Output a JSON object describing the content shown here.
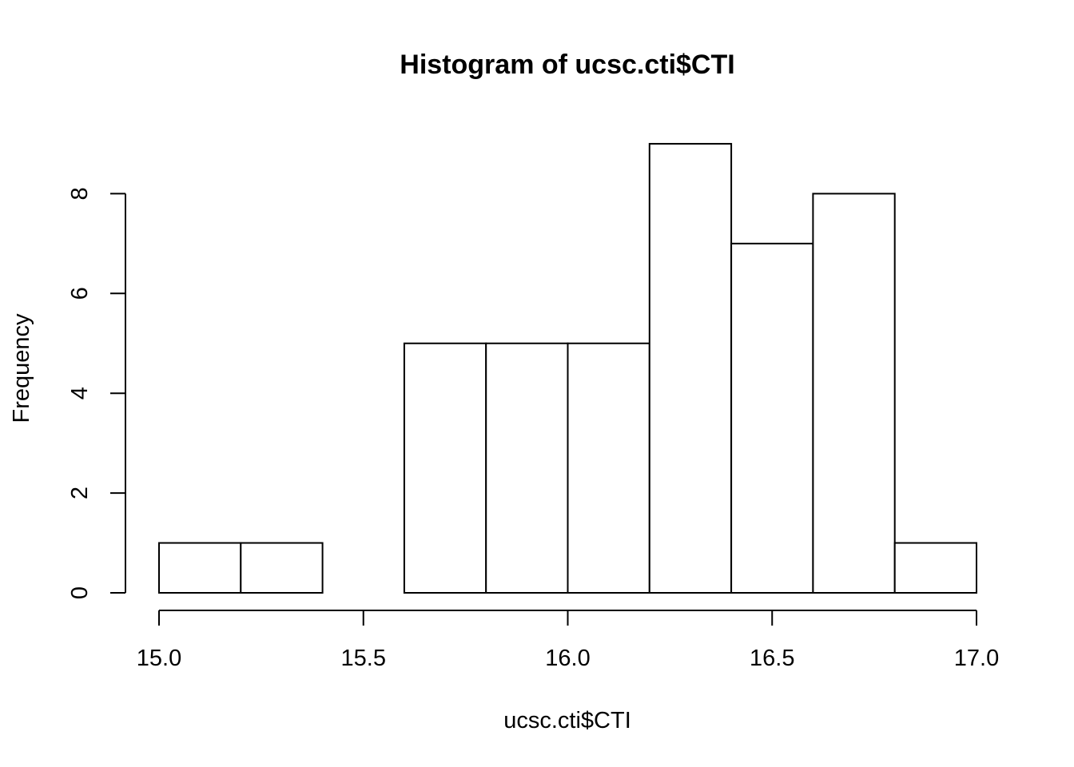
{
  "chart_data": {
    "type": "bar",
    "subtype": "histogram",
    "title": "Histogram of ucsc.cti$CTI",
    "xlabel": "ucsc.cti$CTI",
    "ylabel": "Frequency",
    "bins": [
      {
        "start": 15.0,
        "end": 15.2,
        "count": 1
      },
      {
        "start": 15.2,
        "end": 15.4,
        "count": 1
      },
      {
        "start": 15.4,
        "end": 15.6,
        "count": 0
      },
      {
        "start": 15.6,
        "end": 15.8,
        "count": 5
      },
      {
        "start": 15.8,
        "end": 16.0,
        "count": 5
      },
      {
        "start": 16.0,
        "end": 16.2,
        "count": 5
      },
      {
        "start": 16.2,
        "end": 16.4,
        "count": 9
      },
      {
        "start": 16.4,
        "end": 16.6,
        "count": 7
      },
      {
        "start": 16.6,
        "end": 16.8,
        "count": 8
      },
      {
        "start": 16.8,
        "end": 17.0,
        "count": 1
      }
    ],
    "xlim": [
      15.0,
      17.0
    ],
    "ylim": [
      0,
      9
    ],
    "xticks": [
      "15.0",
      "15.5",
      "16.0",
      "16.5",
      "17.0"
    ],
    "yticks": [
      "0",
      "2",
      "4",
      "6",
      "8"
    ],
    "grid": false,
    "bar_fill": "#ffffff",
    "bar_stroke": "#000000"
  }
}
